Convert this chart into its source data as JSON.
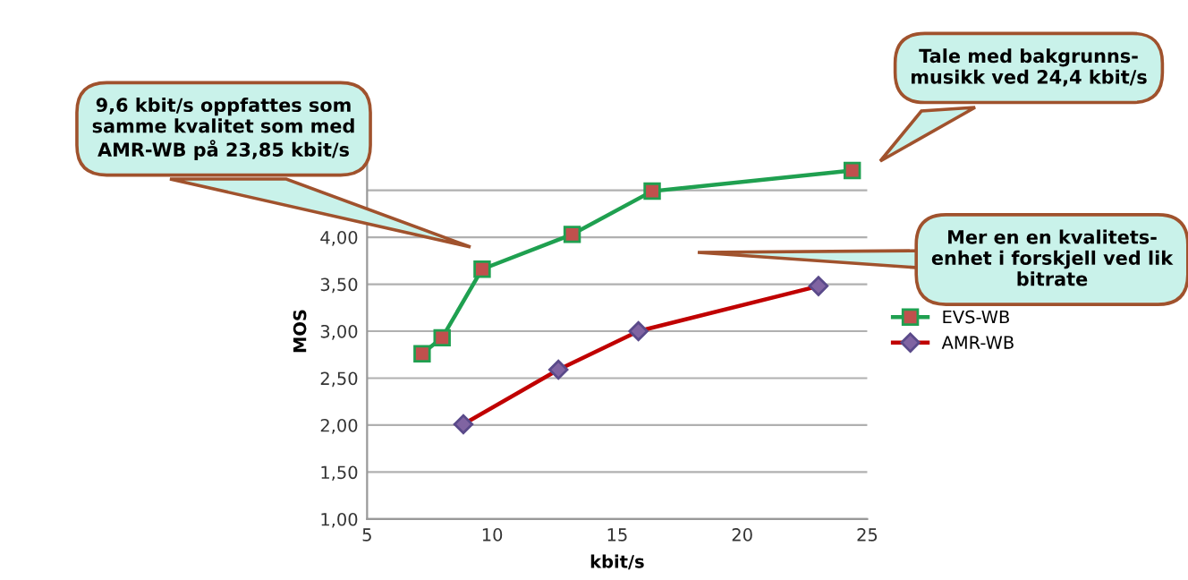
{
  "chart_data": {
    "type": "line",
    "xlabel": "kbit/s",
    "ylabel": "MOS",
    "xlim": [
      5,
      25
    ],
    "xticks": [
      5,
      10,
      15,
      20,
      25
    ],
    "ylim": [
      1,
      5
    ],
    "yticks": [
      {
        "value": 1,
        "label": "1,00"
      },
      {
        "value": 1.5,
        "label": "1,50"
      },
      {
        "value": 2,
        "label": "2,00"
      },
      {
        "value": 2.5,
        "label": "2,50"
      },
      {
        "value": 3,
        "label": "3,00"
      },
      {
        "value": 3.5,
        "label": "3,50"
      },
      {
        "value": 4,
        "label": "4,00"
      },
      {
        "value": 4.5,
        "label": null
      }
    ],
    "grid": "y",
    "legend": "right",
    "series": [
      {
        "name": "EVS-WB",
        "color": "#1fa050",
        "marker": "square",
        "x": [
          7.2,
          8,
          9.6,
          13.2,
          16.4,
          24.4
        ],
        "values": [
          2.76,
          2.93,
          3.66,
          4.03,
          4.49,
          4.71
        ]
      },
      {
        "name": "AMR-WB",
        "color": "#c00000",
        "marker": "diamond",
        "x": [
          8.85,
          12.65,
          15.85,
          23.05
        ],
        "values": [
          2.01,
          2.59,
          3.0,
          3.48
        ]
      }
    ],
    "annotations": [
      "9,6 kbit/s oppfattes som\nsamme kvalitet som med\nAMR-WB på 23,85 kbit/s",
      "Tale med bakgrunns-\nmusikk ved 24,4 kbit/s",
      "Mer en en kvalitets-\nenhet i forskjell ved lik\nbitrate"
    ]
  }
}
